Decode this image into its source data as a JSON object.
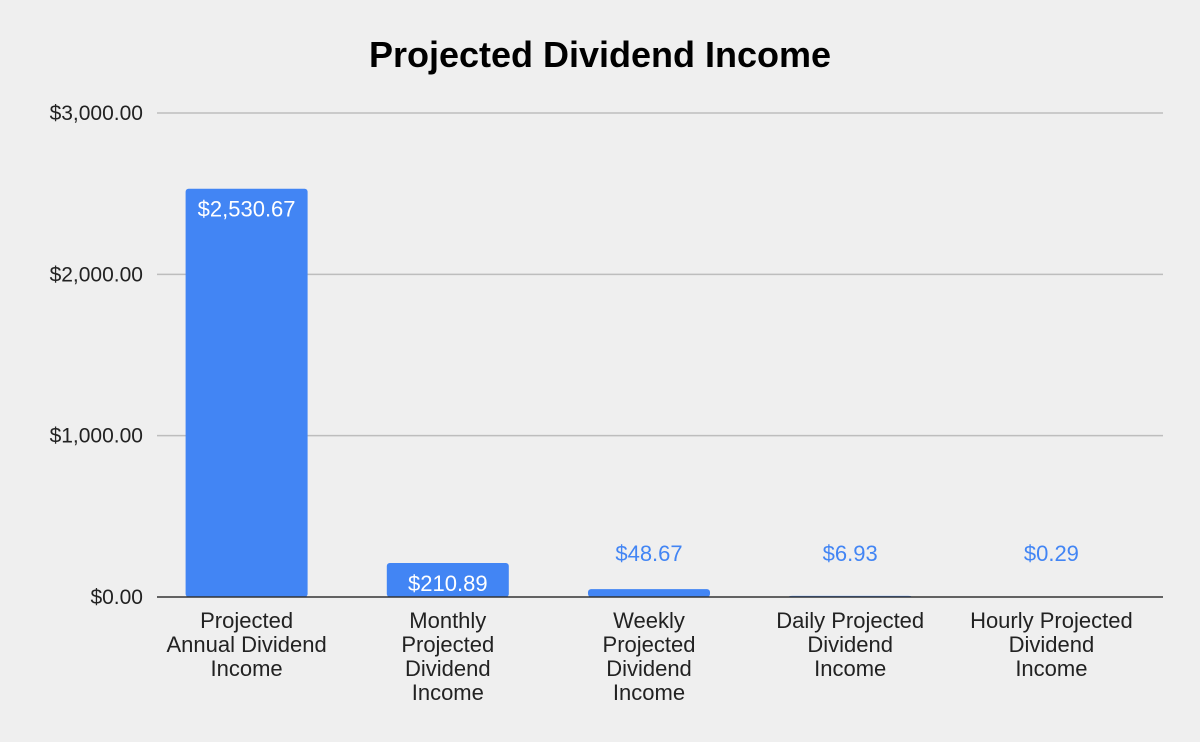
{
  "chart_data": {
    "type": "bar",
    "title": "Projected Dividend Income",
    "xlabel": "",
    "ylabel": "",
    "ylim": [
      0,
      3000
    ],
    "yticks": [
      "$0.00",
      "$1,000.00",
      "$2,000.00",
      "$3,000.00"
    ],
    "ytick_values": [
      0,
      1000,
      2000,
      3000
    ],
    "grid": true,
    "legend": "none",
    "categories": [
      "Projected Annual Dividend Income",
      "Monthly Projected Dividend Income",
      "Weekly Projected Dividend Income",
      "Daily Projected Dividend Income",
      "Hourly Projected Dividend Income"
    ],
    "category_lines": [
      [
        "Projected",
        "Annual Dividend",
        "Income"
      ],
      [
        "Monthly",
        "Projected",
        "Dividend",
        "Income"
      ],
      [
        "Weekly",
        "Projected",
        "Dividend",
        "Income"
      ],
      [
        "Daily Projected",
        "Dividend",
        "Income"
      ],
      [
        "Hourly Projected",
        "Dividend",
        "Income"
      ]
    ],
    "values": [
      2530.67,
      210.89,
      48.67,
      6.93,
      0.29
    ],
    "data_labels": [
      "$2,530.67",
      "$210.89",
      "$48.67",
      "$6.93",
      "$0.29"
    ],
    "colors": {
      "bar": "#4285f4",
      "label_inside": "#ffffff",
      "label_outside": "#4285f4"
    }
  }
}
